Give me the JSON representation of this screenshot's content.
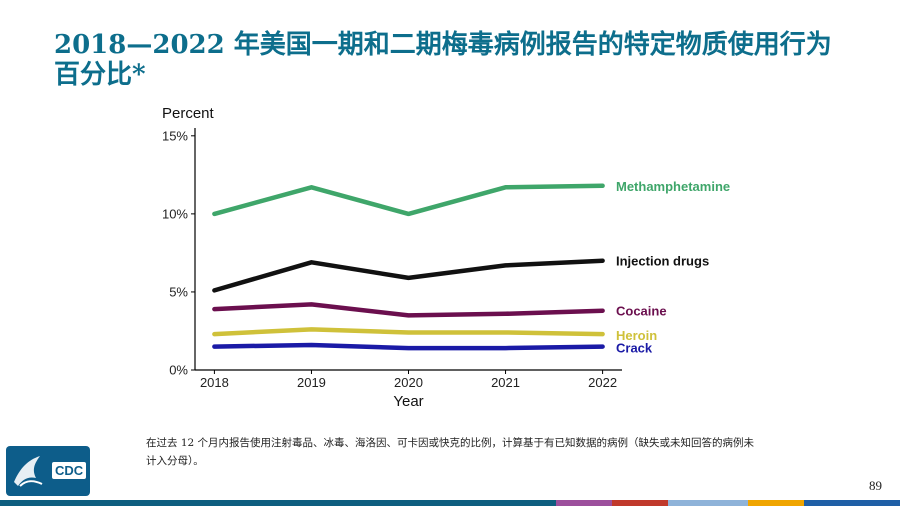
{
  "title": "2018—2022 年美国一期和二期梅毒病例报告的特定物质使用行为百分比*",
  "footnote": "在过去 12 个月内报告使用注射毒品、冰毒、海洛因、可卡因或快克的比例，计算基于有已知数据的病例（缺失或未知回答的病例未计入分母）。",
  "page_number": "89",
  "logo": {
    "text": "CDC"
  },
  "colors": {
    "title": "#0d6e8c",
    "bottom_bar": [
      "#0e5e7f",
      "#0e5e7f",
      "#0e5e7f",
      "#9c4f9c",
      "#c0392b",
      "#8fb3d9",
      "#f0a500",
      "#1f5fa6"
    ]
  },
  "chart_data": {
    "type": "line",
    "title": "",
    "xlabel": "Year",
    "ylabel": "Percent",
    "x": [
      2018,
      2019,
      2020,
      2021,
      2022
    ],
    "ylim": [
      0,
      15.5
    ],
    "yticks": [
      0,
      5,
      10,
      15
    ],
    "ytick_labels": [
      "0%",
      "5%",
      "10%",
      "15%"
    ],
    "grid": false,
    "series": [
      {
        "name": "Methamphetamine",
        "color": "#3fa66a",
        "values": [
          10.0,
          11.7,
          10.0,
          11.7,
          11.8
        ]
      },
      {
        "name": "Injection drugs",
        "color": "#111111",
        "values": [
          5.1,
          6.9,
          5.9,
          6.7,
          7.0
        ]
      },
      {
        "name": "Cocaine",
        "color": "#6b0f4e",
        "values": [
          3.9,
          4.2,
          3.5,
          3.6,
          3.8
        ]
      },
      {
        "name": "Heroin",
        "color": "#cfc13a",
        "values": [
          2.3,
          2.6,
          2.4,
          2.4,
          2.3
        ]
      },
      {
        "name": "Crack",
        "color": "#1a1aa6",
        "values": [
          1.5,
          1.6,
          1.4,
          1.4,
          1.5
        ]
      }
    ]
  }
}
